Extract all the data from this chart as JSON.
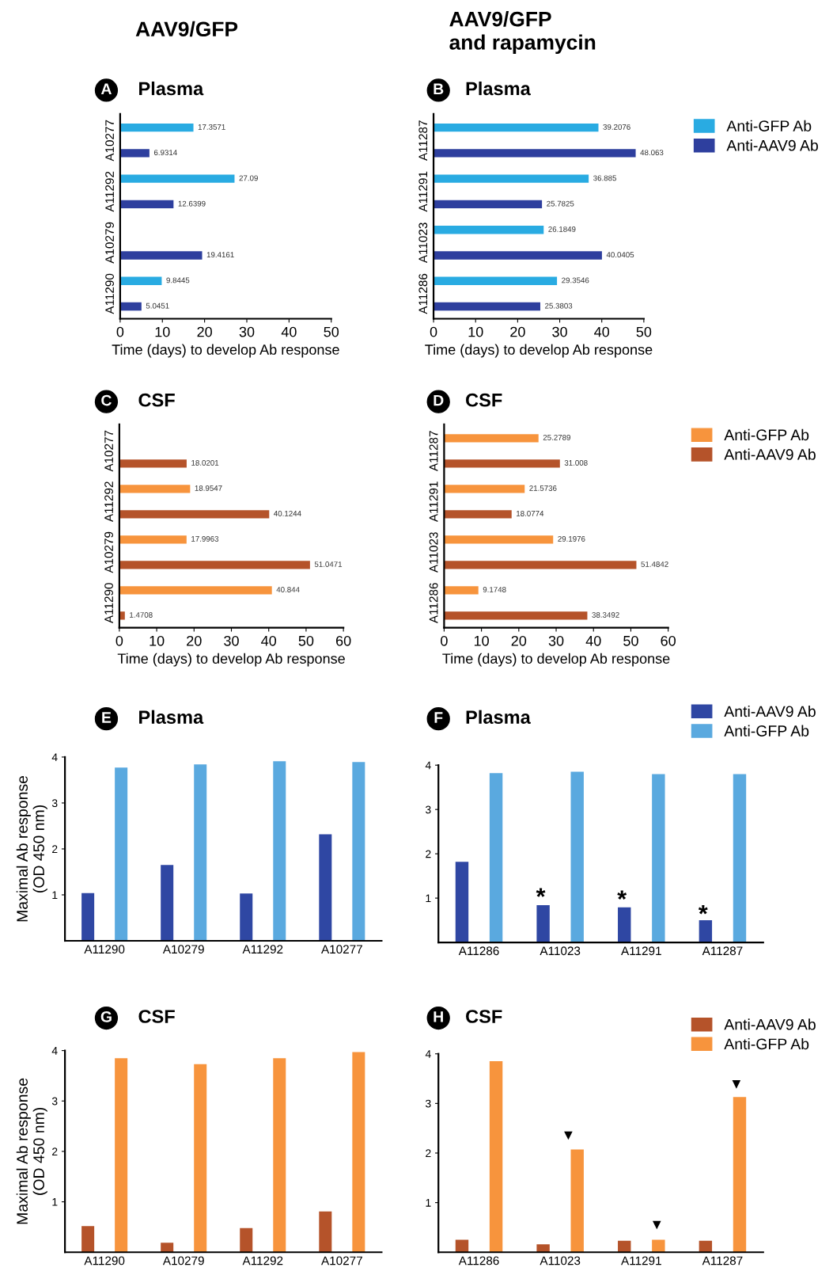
{
  "chart_data": [
    {
      "type": "bar",
      "orientation": "horizontal",
      "title": "Plasma",
      "annotations": [
        "A",
        "AAV9/GFP"
      ],
      "categories": [
        "A10277",
        "A11292",
        "A10279",
        "A11290"
      ],
      "series": [
        {
          "color": "#29abe2",
          "values": [
            17.3571,
            27.09,
            null,
            9.8445
          ]
        },
        {
          "color": "#2e3f9e",
          "values": [
            6.9314,
            12.6399,
            19.4161,
            5.0451
          ]
        }
      ],
      "data_labels": true,
      "xlim": [
        0,
        50
      ],
      "xticks": [
        0,
        10,
        20,
        30,
        40,
        50
      ],
      "xlabel": "Time (days) to develop Ab response"
    },
    {
      "type": "bar",
      "orientation": "horizontal",
      "title": "Plasma",
      "annotations": [
        "B",
        "AAV9/GFP\nand rapamycin"
      ],
      "categories": [
        "A11287",
        "A11291",
        "A11023",
        "A11286"
      ],
      "series": [
        {
          "name": "Anti-GFP Ab",
          "color": "#29abe2",
          "values": [
            39.2076,
            36.885,
            26.1849,
            29.3546
          ]
        },
        {
          "name": "Anti-AAV9 Ab",
          "color": "#2e3f9e",
          "values": [
            48.063,
            25.7825,
            40.0405,
            25.3803
          ]
        }
      ],
      "data_labels": true,
      "legend": "right",
      "xlim": [
        0,
        50
      ],
      "xticks": [
        0,
        10,
        20,
        30,
        40,
        50
      ],
      "xlabel": "Time (days) to develop Ab response"
    },
    {
      "type": "bar",
      "orientation": "horizontal",
      "title": "CSF",
      "annotations": [
        "C"
      ],
      "categories": [
        "A10277",
        "A11292",
        "A10279",
        "A11290"
      ],
      "series": [
        {
          "color": "#f7943d",
          "values": [
            null,
            18.9547,
            17.9963,
            40.844
          ]
        },
        {
          "color": "#b5532a",
          "values": [
            18.0201,
            40.1244,
            51.0471,
            1.4708
          ]
        }
      ],
      "data_labels": true,
      "xlim": [
        0,
        60
      ],
      "xticks": [
        0,
        10,
        20,
        30,
        40,
        50,
        60
      ],
      "xlabel": "Time (days) to develop Ab response"
    },
    {
      "type": "bar",
      "orientation": "horizontal",
      "title": "CSF",
      "annotations": [
        "D"
      ],
      "categories": [
        "A11287",
        "A11291",
        "A11023",
        "A11286"
      ],
      "series": [
        {
          "name": "Anti-GFP Ab",
          "color": "#f7943d",
          "values": [
            25.2789,
            21.5736,
            29.1976,
            9.1748
          ]
        },
        {
          "name": "Anti-AAV9 Ab",
          "color": "#b5532a",
          "values": [
            31.008,
            18.0774,
            51.4842,
            38.3492
          ]
        }
      ],
      "data_labels": true,
      "legend": "right",
      "xlim": [
        0,
        60
      ],
      "xticks": [
        0,
        10,
        20,
        30,
        40,
        50,
        60
      ],
      "xlabel": "Time (days) to develop Ab response"
    },
    {
      "type": "bar",
      "title": "Plasma",
      "annotations": [
        "E"
      ],
      "categories": [
        "A11290",
        "A10279",
        "A11292",
        "A10277"
      ],
      "series": [
        {
          "color": "#2f47a3",
          "values": [
            1.04,
            1.65,
            1.03,
            2.32
          ]
        },
        {
          "color": "#5aa9df",
          "values": [
            3.77,
            3.84,
            3.91,
            3.89
          ]
        }
      ],
      "ylim": [
        0,
        4
      ],
      "yticks": [
        1,
        2,
        3,
        4
      ],
      "ylabel": "Maximal Ab response\n(OD 450 nm)"
    },
    {
      "type": "bar",
      "title": "Plasma",
      "annotations": [
        "F",
        "*",
        "*",
        "*"
      ],
      "categories": [
        "A11286",
        "A11023",
        "A11291",
        "A11287"
      ],
      "series": [
        {
          "name": "Anti-AAV9 Ab",
          "color": "#2f47a3",
          "values": [
            1.82,
            0.84,
            0.79,
            0.5
          ]
        },
        {
          "name": "Anti-GFP Ab",
          "color": "#5aa9df",
          "values": [
            3.82,
            3.85,
            3.8,
            3.8
          ]
        }
      ],
      "legend": "right",
      "ylim": [
        0,
        4
      ],
      "yticks": [
        1,
        2,
        3,
        4
      ]
    },
    {
      "type": "bar",
      "title": "CSF",
      "annotations": [
        "G"
      ],
      "categories": [
        "A11290",
        "A10279",
        "A11292",
        "A10277"
      ],
      "series": [
        {
          "color": "#b5532a",
          "values": [
            0.52,
            0.19,
            0.48,
            0.81
          ]
        },
        {
          "color": "#f7943d",
          "values": [
            3.85,
            3.73,
            3.85,
            3.97
          ]
        }
      ],
      "ylim": [
        0,
        4
      ],
      "yticks": [
        1,
        2,
        3,
        4
      ],
      "ylabel": "Maximal Ab response\n(OD 450 nm)"
    },
    {
      "type": "bar",
      "title": "CSF",
      "annotations": [
        "H",
        "▼",
        "▼",
        "▼"
      ],
      "categories": [
        "A11286",
        "A11023",
        "A11291",
        "A11287"
      ],
      "series": [
        {
          "name": "Anti-AAV9 Ab",
          "color": "#b5532a",
          "values": [
            0.25,
            0.16,
            0.23,
            0.23
          ]
        },
        {
          "name": "Anti-GFP Ab",
          "color": "#f7943d",
          "values": [
            3.85,
            2.07,
            0.25,
            3.13
          ]
        }
      ],
      "legend": "right",
      "ylim": [
        0,
        4
      ],
      "yticks": [
        1,
        2,
        3,
        4
      ]
    }
  ]
}
